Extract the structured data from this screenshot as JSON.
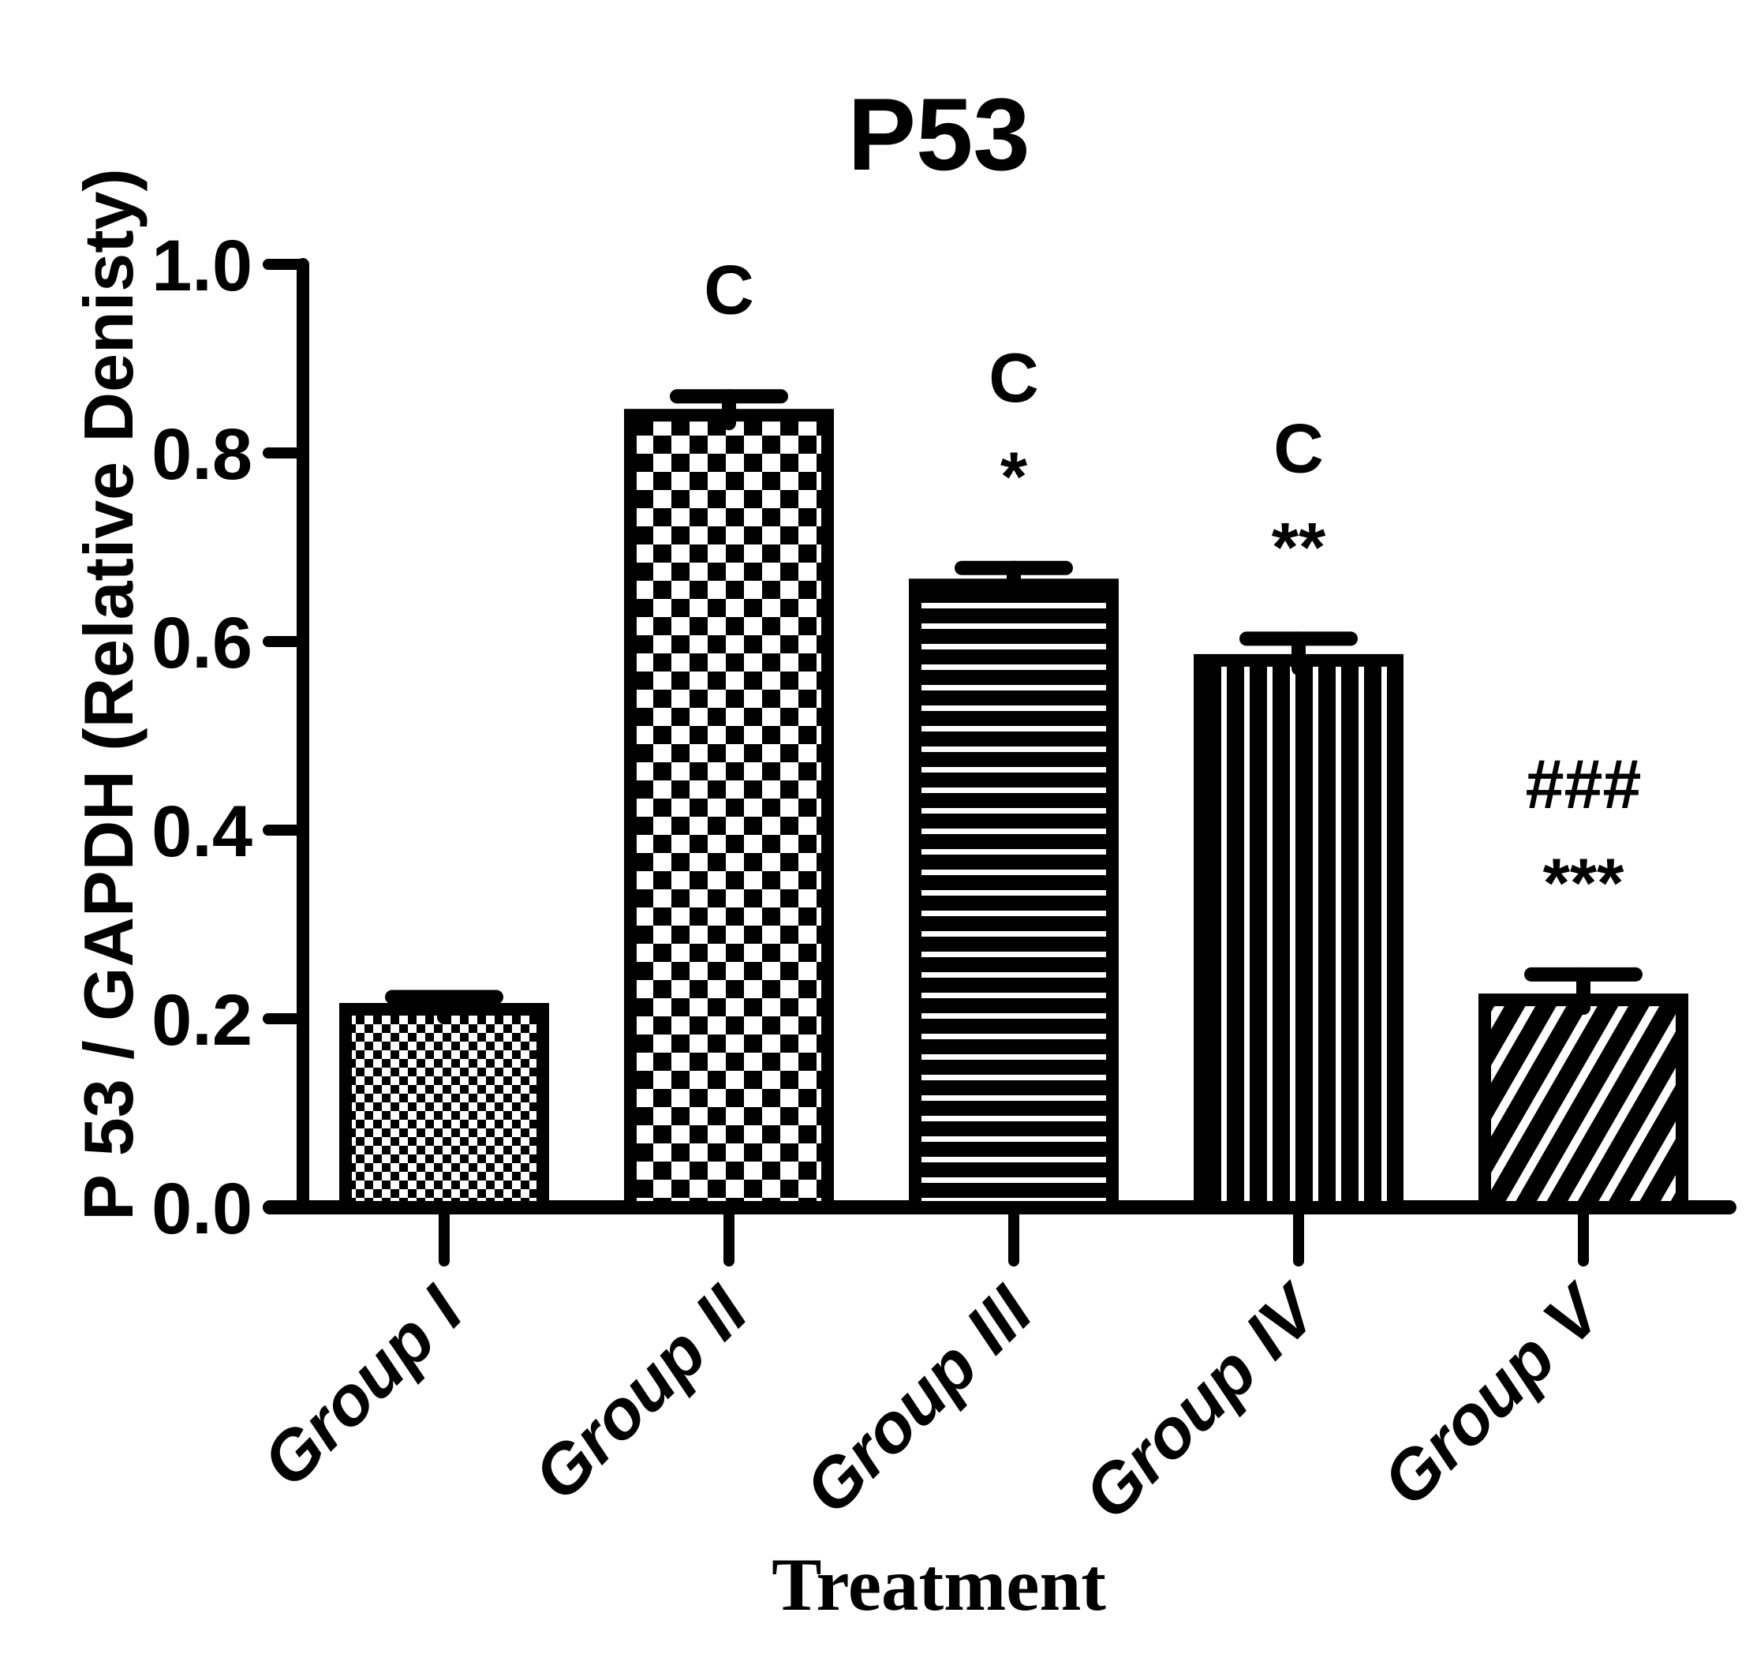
{
  "chart_data": {
    "type": "bar",
    "title": "P53",
    "xlabel": "Treatment",
    "ylabel": "P 53 / GAPDH (Relative Denisty)",
    "categories": [
      "Group I",
      "Group II",
      "Group III",
      "Group IV",
      "Group V"
    ],
    "values": [
      0.21,
      0.84,
      0.66,
      0.58,
      0.22
    ],
    "errors": [
      0.013,
      0.02,
      0.018,
      0.023,
      0.027
    ],
    "error_type": "upper SEM caps",
    "annotations": [
      [],
      [
        "C"
      ],
      [
        "C",
        "*"
      ],
      [
        "C",
        "**"
      ],
      [
        "###",
        "***"
      ]
    ],
    "bar_patterns": [
      "small-checkerboard",
      "large-checkerboard",
      "horizontal-stripes",
      "vertical-stripes",
      "diagonal-stripes"
    ],
    "ylim": [
      0,
      1.0
    ],
    "yticks": [
      0,
      0.2,
      0.4,
      0.6,
      0.8,
      1.0
    ],
    "ytick_labels": [
      "0.0",
      "0.2",
      "0.4",
      "0.6",
      "0.8",
      "1.0"
    ],
    "grid": false,
    "legend": "none",
    "colors": {
      "foreground": "#000000",
      "background": "#ffffff"
    }
  }
}
